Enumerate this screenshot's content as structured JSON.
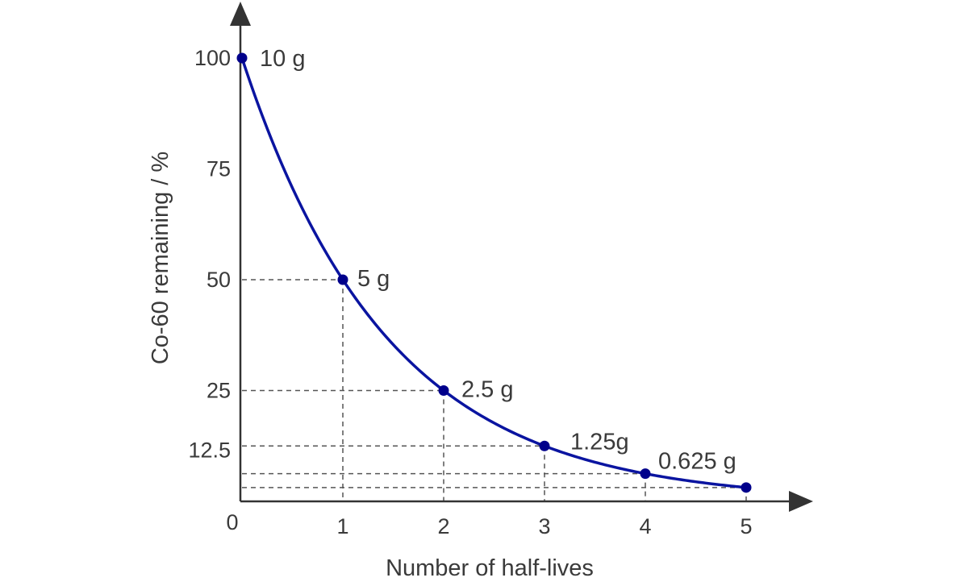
{
  "chart_data": {
    "type": "line",
    "title": "",
    "xlabel": "Number of half-lives",
    "ylabel": "Co-60 remaining / %",
    "origin_label": "0",
    "xlim": [
      0,
      5
    ],
    "ylim": [
      0,
      100
    ],
    "x_ticks": [
      1,
      2,
      3,
      4,
      5
    ],
    "x_tick_labels": [
      "1",
      "2",
      "3",
      "4",
      "5"
    ],
    "y_ticks": [
      100,
      75,
      50,
      25,
      12.5
    ],
    "y_tick_labels": [
      "100",
      "75",
      "50",
      "25",
      "12.5"
    ],
    "grid": false,
    "guide_lines": "dashed",
    "series": [
      {
        "x": [
          0,
          1,
          2,
          3,
          4,
          5
        ],
        "y": [
          100,
          50,
          25,
          12.5,
          6.25,
          3.125
        ],
        "labels": [
          "10 g",
          "5 g",
          "2.5 g",
          "1.25g",
          "0.625 g",
          ""
        ],
        "color": "#00008b"
      }
    ],
    "curve_color": "#0a14a0",
    "marker_color": "#00008b"
  }
}
